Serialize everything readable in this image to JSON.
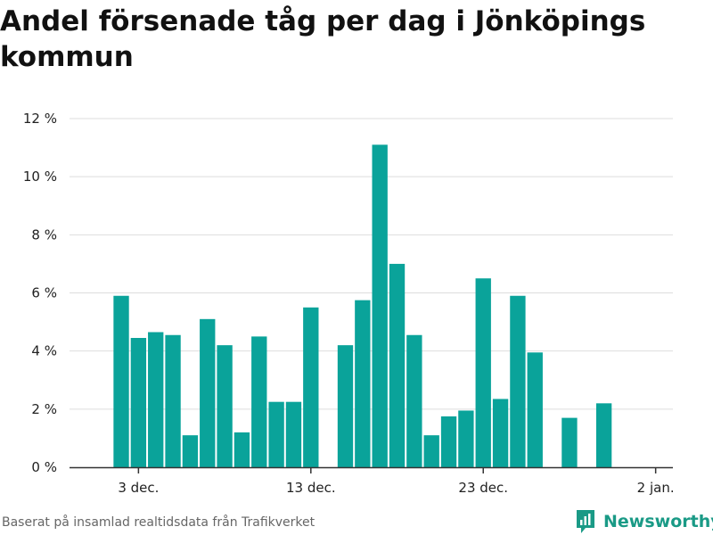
{
  "title": "Andel försenade tåg per dag i Jönköpings kommun",
  "source": "Baserat på insamlad realtidsdata från Trafikverket",
  "brand": {
    "name": "Newsworthy",
    "icon": "newsworthy-logo-icon"
  },
  "colors": {
    "bar": "#0aa39a",
    "grid": "#dddddd",
    "axis": "#333333",
    "brand": "#1a9a86"
  },
  "chart_data": {
    "type": "bar",
    "title": "Andel försenade tåg per dag i Jönköpings kommun",
    "xlabel": "",
    "ylabel": "",
    "x_range": [
      "2023-11-29",
      "2024-01-03"
    ],
    "ylim": [
      0,
      12
    ],
    "y_ticks": [
      0,
      2,
      4,
      6,
      8,
      10,
      12
    ],
    "y_tick_labels": [
      "0 %",
      "2 %",
      "4 %",
      "6 %",
      "8 %",
      "10 %",
      "12 %"
    ],
    "x_ticks": [
      "2023-12-03",
      "2023-12-13",
      "2023-12-23",
      "2024-01-02"
    ],
    "x_tick_labels": [
      "3 dec.",
      "13 dec.",
      "23 dec.",
      "2 jan."
    ],
    "grid": true,
    "series": [
      {
        "x": [
          "2023-12-02",
          "2023-12-03",
          "2023-12-04",
          "2023-12-05",
          "2023-12-06",
          "2023-12-07",
          "2023-12-08",
          "2023-12-09",
          "2023-12-10",
          "2023-12-11",
          "2023-12-12",
          "2023-12-13",
          "2023-12-15",
          "2023-12-16",
          "2023-12-17",
          "2023-12-18",
          "2023-12-19",
          "2023-12-20",
          "2023-12-21",
          "2023-12-22",
          "2023-12-23",
          "2023-12-24",
          "2023-12-25",
          "2023-12-26",
          "2023-12-28",
          "2023-12-30"
        ],
        "values": [
          5.9,
          4.45,
          4.65,
          4.55,
          1.1,
          5.1,
          4.2,
          1.2,
          4.5,
          2.25,
          2.25,
          5.5,
          4.2,
          5.75,
          11.1,
          7.0,
          4.55,
          1.1,
          1.75,
          1.95,
          6.5,
          2.35,
          5.9,
          3.95,
          1.7,
          2.2
        ]
      }
    ]
  }
}
